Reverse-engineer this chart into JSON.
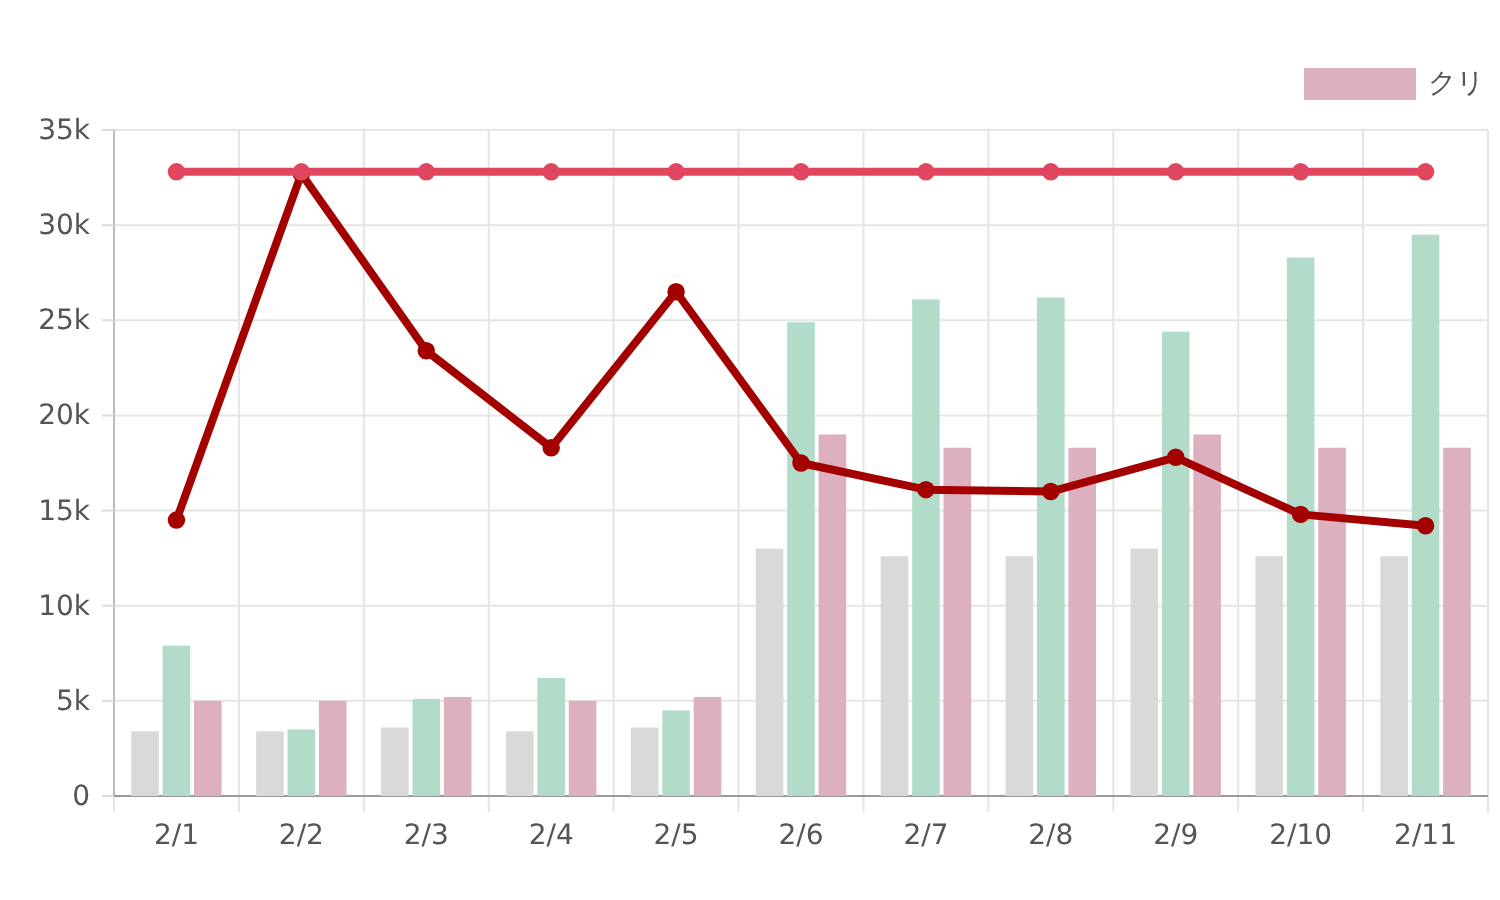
{
  "chart_data": {
    "type": "bar",
    "categories": [
      "2/1",
      "2/2",
      "2/3",
      "2/4",
      "2/5",
      "2/6",
      "2/7",
      "2/8",
      "2/9",
      "2/10",
      "2/11"
    ],
    "series": [
      {
        "color": "#d9d9d9",
        "values": [
          3400,
          3400,
          3600,
          3400,
          3600,
          13000,
          12600,
          12600,
          13000,
          12600,
          12600
        ]
      },
      {
        "color": "#b3dbc9",
        "values": [
          7900,
          3500,
          5100,
          6200,
          4500,
          24900,
          26100,
          26200,
          24400,
          28300,
          29500
        ]
      },
      {
        "name": "クリ",
        "color": "#dcb0be",
        "values": [
          5000,
          5000,
          5200,
          5000,
          5200,
          19000,
          18300,
          18300,
          19000,
          18300,
          18300
        ]
      },
      {
        "type": "line",
        "color": "#a30000",
        "values": [
          14500,
          32700,
          23400,
          18300,
          26500,
          17500,
          16100,
          16000,
          17800,
          14800,
          14200
        ]
      },
      {
        "type": "line",
        "color": "#e0475f",
        "values": [
          32800,
          32800,
          32800,
          32800,
          32800,
          32800,
          32800,
          32800,
          32800,
          32800,
          32800
        ]
      }
    ],
    "ylim": [
      0,
      35000
    ],
    "yticks": [
      0,
      {
        "value": 5000,
        "label": "5k"
      },
      {
        "value": 10000,
        "label": "10k"
      },
      {
        "value": 15000,
        "label": "15k"
      },
      {
        "value": 20000,
        "label": "20k"
      },
      {
        "value": 25000,
        "label": "25k"
      },
      {
        "value": 30000,
        "label": "30k"
      },
      {
        "value": 35000,
        "label": "35k"
      }
    ],
    "grid": true,
    "legend": "top right",
    "marker": "circle",
    "line_style": "solid"
  }
}
